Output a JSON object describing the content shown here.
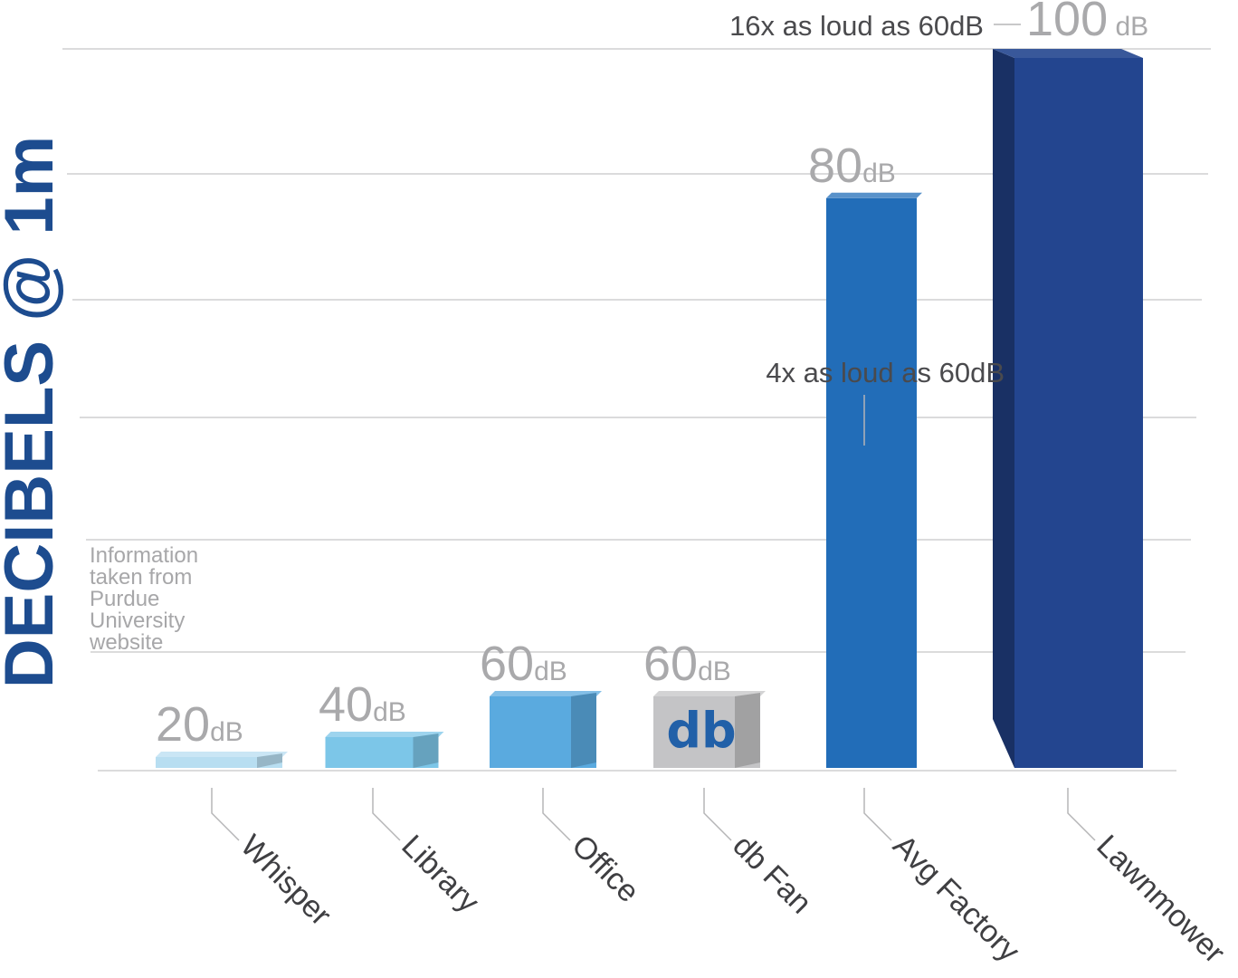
{
  "chart_data": {
    "type": "bar",
    "ylabel": "DECIBELS @ 1m",
    "ylim": [
      0,
      100
    ],
    "categories": [
      "Whisper",
      "Library",
      "Office",
      "db Fan",
      "Avg Factory",
      "Lawnmower"
    ],
    "values": [
      20,
      40,
      60,
      60,
      80,
      100
    ],
    "value_labels": [
      {
        "num": "20",
        "unit": "dB"
      },
      {
        "num": "40",
        "unit": "dB"
      },
      {
        "num": "60",
        "unit": "dB"
      },
      {
        "num": "60",
        "unit": "dB"
      },
      {
        "num": "80",
        "unit": "dB"
      },
      {
        "num": "100",
        "unit": " dB"
      }
    ],
    "bar_colors": [
      "#b8def1",
      "#7cc6e8",
      "#5aaadf",
      "#c4c4c6",
      "#226db8",
      "#23458f"
    ],
    "fan_logo_text": "db",
    "annotations": [
      "4x as loud as 60dB",
      "16x as loud as 60dB"
    ],
    "source_note": [
      "Information",
      "taken from",
      "Purdue",
      "University",
      "website"
    ],
    "grid": true
  }
}
